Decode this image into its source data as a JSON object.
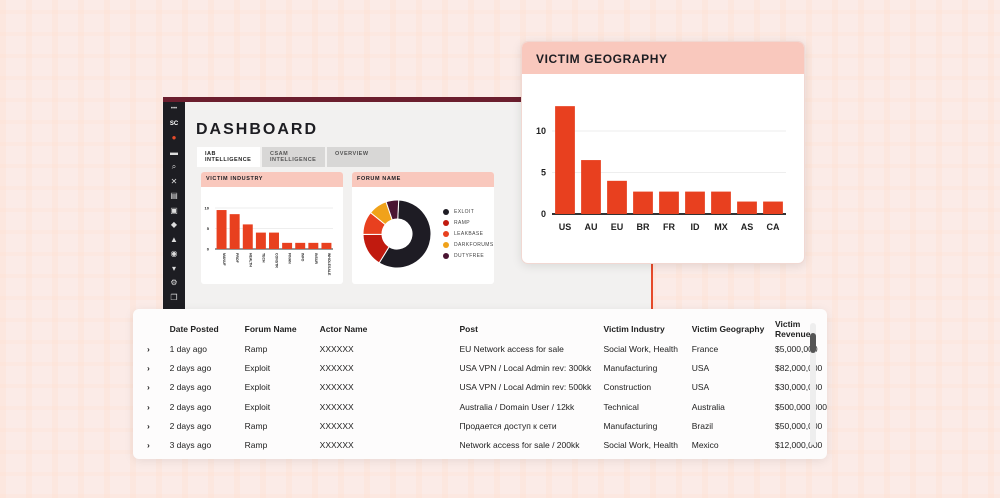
{
  "sidebar": {
    "logo": "SC",
    "icons": [
      "compass-icon",
      "folder-icon",
      "search-icon",
      "tools-icon",
      "book-icon",
      "inbox-icon",
      "diamond-icon",
      "lock-icon",
      "chat-icon",
      "cart-icon",
      "settings-icon",
      "copy-icon"
    ]
  },
  "dashboard": {
    "title": "DASHBOARD",
    "tabs": [
      "IAB INTELLIGENCE",
      "CSAM INTELLIGENCE",
      "OVERVIEW"
    ]
  },
  "industry": {
    "title": "VICTIM INDUSTRY",
    "chart_data": {
      "type": "bar",
      "categories": [
        "MANUF",
        "PROF",
        "HEALTH",
        "TECH",
        "CONSTR",
        "FINAN",
        "INFO",
        "INSUR",
        "WHOLESALE"
      ],
      "values": [
        9.5,
        8.5,
        6,
        4,
        4,
        1.5,
        1.5,
        1.5,
        1.5
      ],
      "ylim": [
        0,
        10
      ],
      "yticks": [
        0,
        5,
        10
      ],
      "color": "#e8401f"
    }
  },
  "forum": {
    "title": "FORUM NAME",
    "chart_data": {
      "type": "pie",
      "categories": [
        "EXLOIT",
        "RAMP",
        "LEAKBASE",
        "DARKFORUMS",
        "DUTYFREE"
      ],
      "values": [
        58,
        16,
        11,
        9,
        6
      ],
      "colors": [
        "#1e1c24",
        "#c11a0f",
        "#e8401f",
        "#f0a21a",
        "#4a1432"
      ]
    }
  },
  "geography": {
    "title": "VICTIM GEOGRAPHY",
    "chart_data": {
      "type": "bar",
      "categories": [
        "US",
        "AU",
        "EU",
        "BR",
        "FR",
        "ID",
        "MX",
        "AS",
        "CA"
      ],
      "values": [
        13,
        6.5,
        4,
        2.7,
        2.7,
        2.7,
        2.7,
        1.5,
        1.5
      ],
      "ylim": [
        0,
        13.5
      ],
      "yticks": [
        0,
        5,
        10
      ],
      "color": "#e8401f"
    }
  },
  "table": {
    "columns": [
      "Date Posted",
      "Forum Name",
      "Actor Name",
      "Post",
      "Victim Industry",
      "Victim Geography",
      "Victim Revenue"
    ],
    "rows": [
      [
        "1 day ago",
        "Ramp",
        "XXXXXX",
        "EU Network access for sale",
        "Social Work, Health",
        "France",
        "$5,000,000"
      ],
      [
        "2 days ago",
        "Exploit",
        "XXXXXX",
        "USA VPN / Local Admin rev: 300kk",
        "Manufacturing",
        "USA",
        "$82,000,000"
      ],
      [
        "2 days ago",
        "Exploit",
        "XXXXXX",
        "USA VPN / Local Admin rev: 500kk",
        "Construction",
        "USA",
        "$30,000,000"
      ],
      [
        "2 days ago",
        "Exploit",
        "XXXXXX",
        "Australia / Domain User / 12kk",
        "Technical",
        "Australia",
        "$500,000,000"
      ],
      [
        "2 days ago",
        "Ramp",
        "XXXXXX",
        "Продается доступ к сети",
        "Manufacturing",
        "Brazil",
        "$50,000,000"
      ],
      [
        "3 days ago",
        "Ramp",
        "XXXXXX",
        "Network access for sale / 200kk",
        "Social Work, Health",
        "Mexico",
        "$12,000,000"
      ]
    ]
  }
}
